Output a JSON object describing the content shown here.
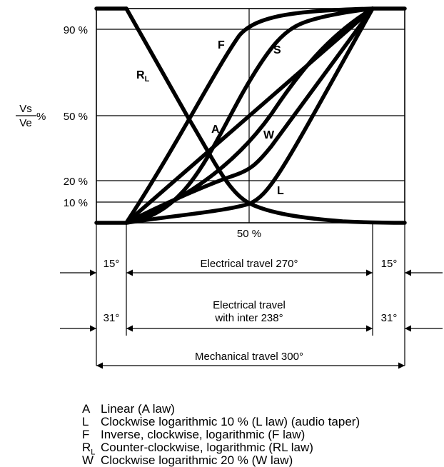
{
  "y_axis": {
    "ratio_numerator": "Vs",
    "ratio_denominator": "Ve",
    "ratio_unit": "%",
    "ticks": [
      "90 %",
      "50 %",
      "20 %",
      "10 %"
    ]
  },
  "x_axis": {
    "tick": "50 %"
  },
  "curve_labels": {
    "F": "F",
    "S": "S",
    "RL_main": "R",
    "RL_sub": "L",
    "A": "A",
    "W": "W",
    "L": "L"
  },
  "dimensions": {
    "row1": {
      "left": "15°",
      "middle": "Electrical travel 270°",
      "right": "15°"
    },
    "row2": {
      "left": "31°",
      "middle_line1": "Electrical travel",
      "middle_line2": "with inter 238°",
      "right": "31°"
    },
    "row3": {
      "middle": "Mechanical travel 300°"
    }
  },
  "legend": [
    {
      "symbol": "A",
      "sub": "",
      "text": "Linear (A law)"
    },
    {
      "symbol": "L",
      "sub": "",
      "text": "Clockwise logarithmic 10 % (L law) (audio taper)"
    },
    {
      "symbol": "F",
      "sub": "",
      "text": "Inverse, clockwise, logarithmic (F law)"
    },
    {
      "symbol": "R",
      "sub": "L",
      "text": "Counter-clockwise, logarithmic (RL law)"
    },
    {
      "symbol": "W",
      "sub": "",
      "text": "Clockwise logarithmic 20 % (W law)"
    }
  ]
}
